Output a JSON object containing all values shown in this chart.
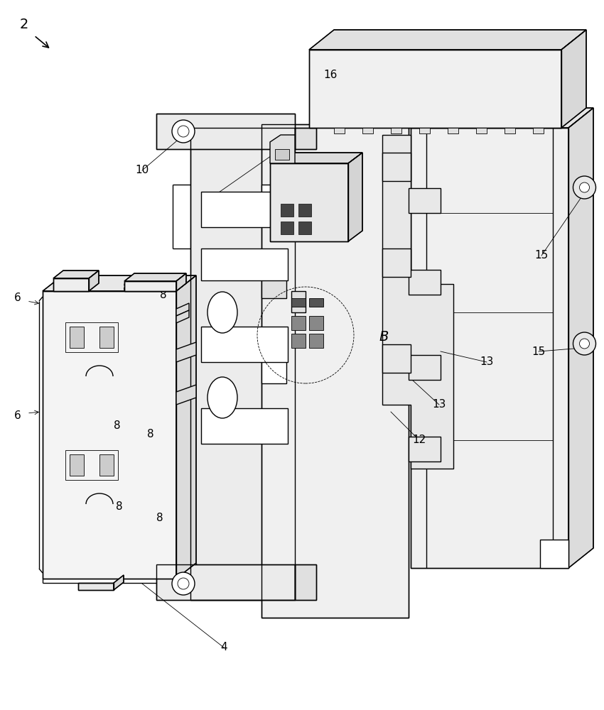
{
  "bg_color": "#ffffff",
  "lc": "#000000",
  "lw": 1.0,
  "tlw": 0.6,
  "fig_w": 8.5,
  "fig_h": 10.0,
  "dpi": 100
}
